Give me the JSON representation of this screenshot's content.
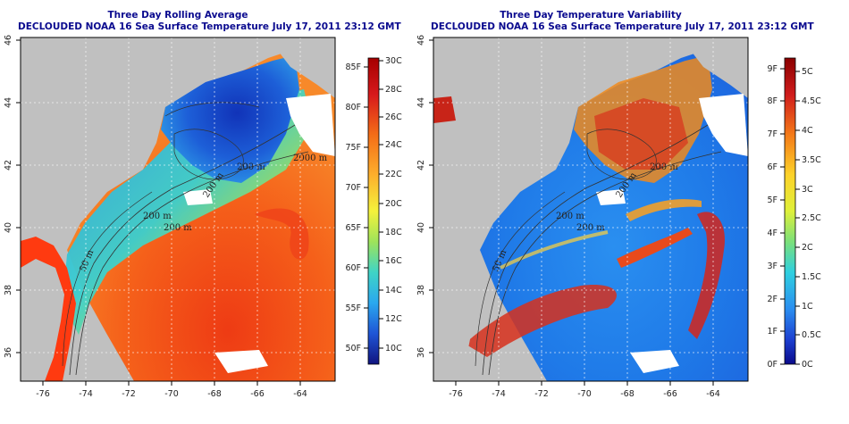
{
  "left_panel": {
    "title": "Three Day Rolling Average",
    "subtitle": "DECLOUDED NOAA 16 Sea Surface Temperature July 17, 2011 23:12 GMT",
    "colorbar_f": [
      "85F",
      "80F",
      "75F",
      "70F",
      "65F",
      "60F",
      "55F",
      "50F"
    ],
    "colorbar_c": [
      "30C",
      "28C",
      "26C",
      "24C",
      "22C",
      "20C",
      "18C",
      "16C",
      "14C",
      "12C",
      "10C"
    ],
    "contour_labels": [
      "200 m",
      "200 m",
      "50 m",
      "200 m",
      "200 m",
      "2000 m"
    ]
  },
  "right_panel": {
    "title": "Three Day Temperature Variability",
    "subtitle": "DECLOUDED NOAA 16 Sea Surface Temperature July 17, 2011 23:12 GMT",
    "colorbar_f": [
      "9F",
      "8F",
      "7F",
      "6F",
      "5F",
      "4F",
      "3F",
      "2F",
      "1F",
      "0F"
    ],
    "colorbar_c": [
      "5C",
      "4.5C",
      "4C",
      "3.5C",
      "3C",
      "2.5C",
      "2C",
      "1.5C",
      "1C",
      "0.5C",
      "0C"
    ],
    "contour_labels": [
      "200 m",
      "200 m",
      "50 m",
      "200 m",
      "200 m"
    ]
  },
  "axes": {
    "x_ticks": [
      "-76",
      "-74",
      "-72",
      "-70",
      "-68",
      "-66",
      "-64"
    ],
    "y_ticks": [
      "46",
      "44",
      "42",
      "40",
      "38",
      "36"
    ]
  }
}
